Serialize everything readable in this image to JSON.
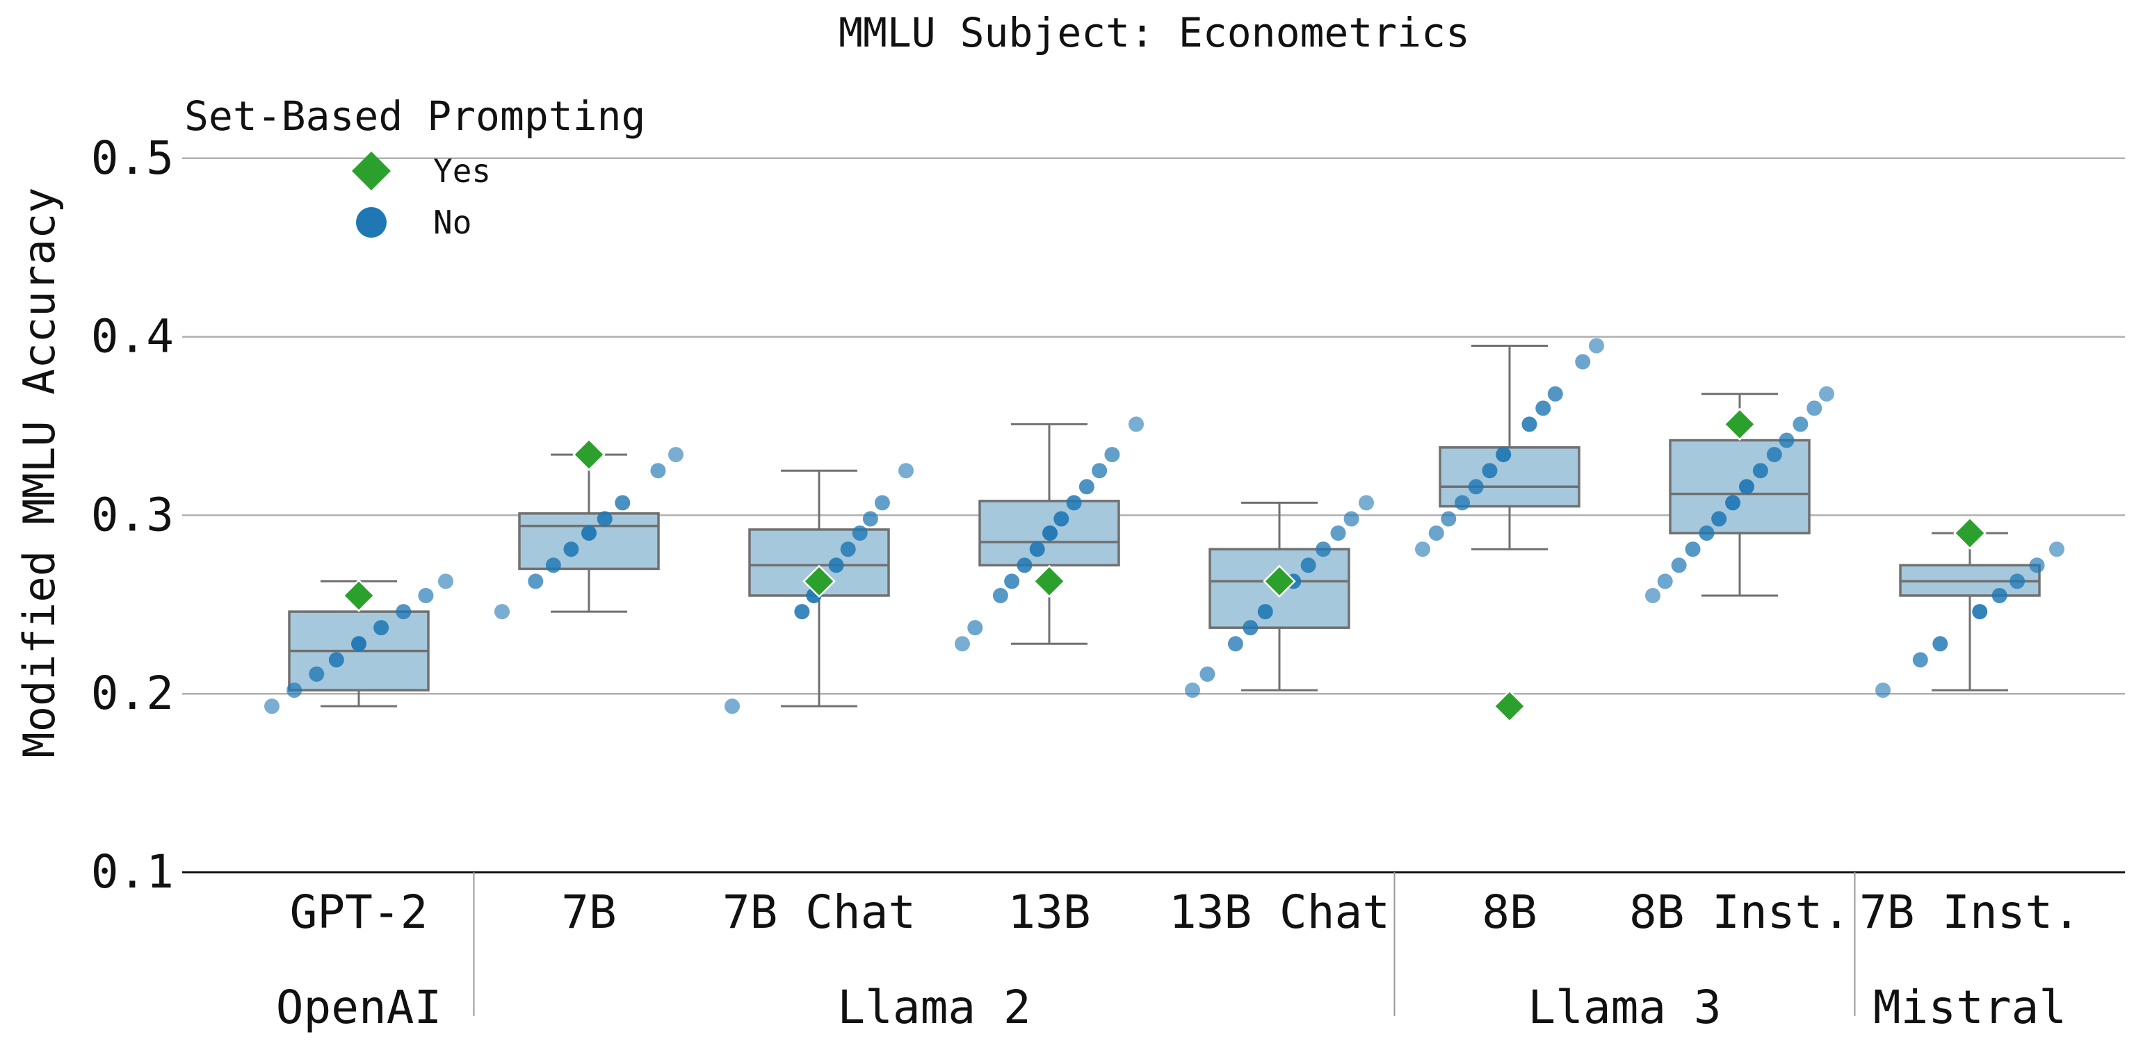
{
  "chart_data": {
    "type": "box",
    "title": "MMLU Subject: Econometrics",
    "xlabel": "",
    "ylabel": "Modified MMLU Accuracy",
    "ylim": [
      0.1,
      0.52
    ],
    "yticks": [
      0.1,
      0.2,
      0.3,
      0.4,
      0.5
    ],
    "ytick_labels": [
      "0.1",
      "0.2",
      "0.3",
      "0.4",
      "0.5"
    ],
    "grid": "horizontal",
    "legend": {
      "title": "Set-Based Prompting",
      "placement": "top-left",
      "entries": [
        {
          "label": "Yes",
          "marker": "diamond",
          "color": "#2ca02c"
        },
        {
          "label": "No",
          "marker": "circle",
          "color": "#1f77b4"
        }
      ]
    },
    "box_color": "#a6c8dc",
    "box_edge_color": "#707070",
    "categories": [
      "GPT-2",
      "7B",
      "7B Chat",
      "13B",
      "13B Chat",
      "8B",
      "8B Inst.",
      "7B Inst."
    ],
    "groups": [
      {
        "name": "OpenAI",
        "categories": [
          "GPT-2"
        ]
      },
      {
        "name": "Llama 2",
        "categories": [
          "7B",
          "7B Chat",
          "13B",
          "13B Chat"
        ]
      },
      {
        "name": "Llama 3",
        "categories": [
          "8B",
          "8B Inst."
        ]
      },
      {
        "name": "Mistral",
        "categories": [
          "7B Inst."
        ]
      }
    ],
    "boxes": [
      {
        "category": "GPT-2",
        "whislo": 0.193,
        "q1": 0.202,
        "med": 0.224,
        "q3": 0.246,
        "whishi": 0.263
      },
      {
        "category": "7B",
        "whislo": 0.246,
        "q1": 0.27,
        "med": 0.294,
        "q3": 0.301,
        "whishi": 0.334
      },
      {
        "category": "7B Chat",
        "whislo": 0.193,
        "q1": 0.255,
        "med": 0.272,
        "q3": 0.292,
        "whishi": 0.325
      },
      {
        "category": "13B",
        "whislo": 0.228,
        "q1": 0.272,
        "med": 0.285,
        "q3": 0.308,
        "whishi": 0.351
      },
      {
        "category": "13B Chat",
        "whislo": 0.202,
        "q1": 0.237,
        "med": 0.263,
        "q3": 0.281,
        "whishi": 0.307
      },
      {
        "category": "8B",
        "whislo": 0.281,
        "q1": 0.305,
        "med": 0.316,
        "q3": 0.338,
        "whishi": 0.395
      },
      {
        "category": "8B Inst.",
        "whislo": 0.255,
        "q1": 0.29,
        "med": 0.312,
        "q3": 0.342,
        "whishi": 0.368
      },
      {
        "category": "7B Inst.",
        "whislo": 0.202,
        "q1": 0.255,
        "med": 0.263,
        "q3": 0.272,
        "whishi": 0.29
      }
    ],
    "series": [
      {
        "name": "No",
        "marker": "circle",
        "color": "#1f77b4",
        "points": [
          {
            "category": "GPT-2",
            "values": [
              0.193,
              0.202,
              0.211,
              0.219,
              0.228,
              0.237,
              0.246,
              0.255,
              0.263
            ]
          },
          {
            "category": "7B",
            "values": [
              0.246,
              0.263,
              0.272,
              0.281,
              0.29,
              0.298,
              0.307,
              0.325,
              0.334
            ]
          },
          {
            "category": "7B Chat",
            "values": [
              0.193,
              0.246,
              0.255,
              0.263,
              0.272,
              0.281,
              0.29,
              0.298,
              0.307,
              0.325
            ]
          },
          {
            "category": "13B",
            "values": [
              0.228,
              0.237,
              0.255,
              0.263,
              0.272,
              0.281,
              0.29,
              0.298,
              0.307,
              0.316,
              0.325,
              0.334,
              0.351
            ]
          },
          {
            "category": "13B Chat",
            "values": [
              0.202,
              0.211,
              0.228,
              0.237,
              0.246,
              0.263,
              0.272,
              0.281,
              0.29,
              0.298,
              0.307
            ]
          },
          {
            "category": "8B",
            "values": [
              0.281,
              0.29,
              0.298,
              0.307,
              0.316,
              0.325,
              0.334,
              0.351,
              0.36,
              0.368,
              0.386,
              0.395
            ]
          },
          {
            "category": "8B Inst.",
            "values": [
              0.255,
              0.263,
              0.272,
              0.281,
              0.29,
              0.298,
              0.307,
              0.316,
              0.325,
              0.334,
              0.342,
              0.351,
              0.36,
              0.368
            ]
          },
          {
            "category": "7B Inst.",
            "values": [
              0.202,
              0.219,
              0.228,
              0.246,
              0.255,
              0.263,
              0.272,
              0.281
            ]
          }
        ]
      },
      {
        "name": "Yes",
        "marker": "diamond",
        "color": "#2ca02c",
        "points": [
          {
            "category": "GPT-2",
            "value": 0.255
          },
          {
            "category": "7B",
            "value": 0.334
          },
          {
            "category": "7B Chat",
            "value": 0.263
          },
          {
            "category": "13B",
            "value": 0.263
          },
          {
            "category": "13B Chat",
            "value": 0.263
          },
          {
            "category": "8B",
            "value": 0.193
          },
          {
            "category": "8B Inst.",
            "value": 0.351
          },
          {
            "category": "7B Inst.",
            "value": 0.29
          }
        ]
      }
    ]
  }
}
